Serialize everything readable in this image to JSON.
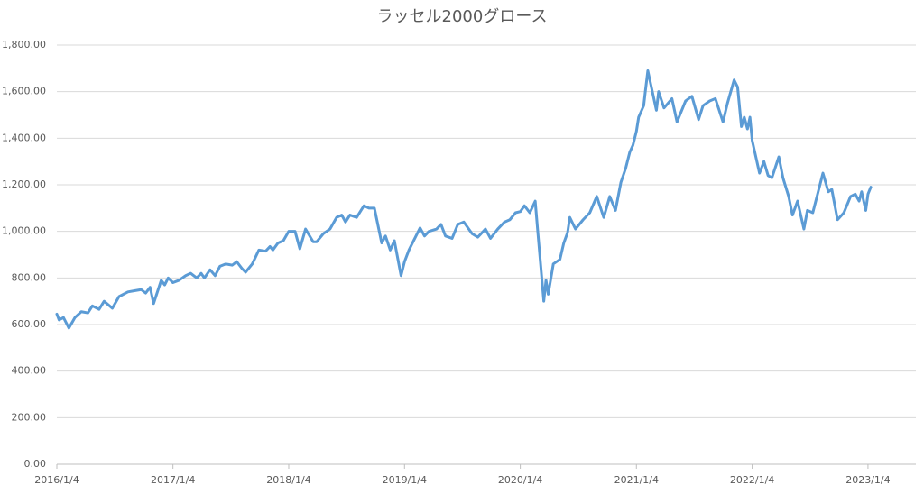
{
  "chart_data": {
    "type": "line",
    "title": "ラッセル2000グロース",
    "x": [
      "2016/1/4",
      "2016/1/11",
      "2016/1/25",
      "2016/2/11",
      "2016/3/1",
      "2016/3/21",
      "2016/4/11",
      "2016/4/25",
      "2016/5/16",
      "2016/6/1",
      "2016/6/27",
      "2016/7/18",
      "2016/8/15",
      "2016/9/5",
      "2016/9/26",
      "2016/10/10",
      "2016/10/24",
      "2016/11/4",
      "2016/11/28",
      "2016/12/9",
      "2016/12/20",
      "2017/1/4",
      "2017/1/23",
      "2017/2/13",
      "2017/3/1",
      "2017/3/20",
      "2017/4/3",
      "2017/4/13",
      "2017/5/1",
      "2017/5/17",
      "2017/6/1",
      "2017/6/19",
      "2017/7/10",
      "2017/7/24",
      "2017/8/10",
      "2017/8/21",
      "2017/9/11",
      "2017/10/2",
      "2017/10/23",
      "2017/11/6",
      "2017/11/15",
      "2017/12/1",
      "2017/12/18",
      "2018/1/4",
      "2018/1/24",
      "2018/2/8",
      "2018/2/26",
      "2018/3/22",
      "2018/4/2",
      "2018/4/23",
      "2018/5/14",
      "2018/6/4",
      "2018/6/20",
      "2018/7/2",
      "2018/7/16",
      "2018/8/6",
      "2018/8/29",
      "2018/9/14",
      "2018/10/1",
      "2018/10/24",
      "2018/11/5",
      "2018/11/20",
      "2018/12/3",
      "2018/12/24",
      "2019/1/4",
      "2019/1/18",
      "2019/2/22",
      "2019/3/8",
      "2019/3/22",
      "2019/4/15",
      "2019/4/29",
      "2019/5/13",
      "2019/6/3",
      "2019/6/21",
      "2019/7/10",
      "2019/8/5",
      "2019/8/23",
      "2019/9/16",
      "2019/10/2",
      "2019/10/25",
      "2019/11/15",
      "2019/12/2",
      "2019/12/20",
      "2020/1/4",
      "2020/1/17",
      "2020/2/3",
      "2020/2/20",
      "2020/2/28",
      "2020/3/18",
      "2020/3/25",
      "2020/4/1",
      "2020/4/17",
      "2020/5/8",
      "2020/5/20",
      "2020/6/1",
      "2020/6/8",
      "2020/6/26",
      "2020/7/20",
      "2020/8/10",
      "2020/9/1",
      "2020/9/23",
      "2020/10/12",
      "2020/10/30",
      "2020/11/16",
      "2020/12/1",
      "2020/12/14",
      "2020/12/24",
      "2021/1/4",
      "2021/1/11",
      "2021/1/27",
      "2021/2/1",
      "2021/2/9",
      "2021/3/8",
      "2021/3/15",
      "2021/4/1",
      "2021/4/26",
      "2021/5/12",
      "2021/6/8",
      "2021/6/28",
      "2021/7/19",
      "2021/8/2",
      "2021/8/23",
      "2021/9/10",
      "2021/10/4",
      "2021/10/18",
      "2021/11/8",
      "2021/11/19",
      "2021/12/1",
      "2021/12/10",
      "2021/12/20",
      "2021/12/28",
      "2022/1/4",
      "2022/1/27",
      "2022/2/10",
      "2022/2/23",
      "2022/3/7",
      "2022/3/29",
      "2022/4/11",
      "2022/4/29",
      "2022/5/11",
      "2022/5/27",
      "2022/6/16",
      "2022/6/27",
      "2022/7/14",
      "2022/8/15",
      "2022/9/1",
      "2022/9/12",
      "2022/9/30",
      "2022/10/20",
      "2022/11/10",
      "2022/11/25",
      "2022/12/7",
      "2022/12/15",
      "2022/12/28",
      "2023/1/4",
      "2023/1/13"
    ],
    "series": [
      {
        "color": "#5b9bd5",
        "values": [
          645,
          620,
          630,
          585,
          630,
          655,
          650,
          680,
          665,
          700,
          670,
          720,
          740,
          745,
          750,
          735,
          760,
          690,
          790,
          770,
          800,
          780,
          790,
          810,
          820,
          800,
          820,
          800,
          835,
          810,
          850,
          860,
          855,
          870,
          840,
          825,
          860,
          920,
          915,
          935,
          920,
          950,
          960,
          1000,
          1000,
          925,
          1010,
          955,
          955,
          990,
          1010,
          1060,
          1070,
          1040,
          1070,
          1060,
          1110,
          1100,
          1100,
          950,
          980,
          920,
          960,
          810,
          870,
          920,
          1015,
          980,
          1000,
          1010,
          1030,
          980,
          970,
          1030,
          1040,
          990,
          975,
          1010,
          970,
          1010,
          1040,
          1050,
          1080,
          1085,
          1110,
          1080,
          1130,
          1000,
          700,
          790,
          730,
          860,
          880,
          950,
          995,
          1060,
          1010,
          1050,
          1080,
          1150,
          1060,
          1150,
          1090,
          1210,
          1270,
          1340,
          1370,
          1430,
          1490,
          1540,
          1600,
          1690,
          1520,
          1600,
          1530,
          1570,
          1470,
          1560,
          1580,
          1480,
          1540,
          1560,
          1570,
          1470,
          1550,
          1650,
          1620,
          1450,
          1490,
          1440,
          1490,
          1390,
          1250,
          1300,
          1240,
          1230,
          1320,
          1230,
          1150,
          1070,
          1130,
          1010,
          1090,
          1080,
          1250,
          1170,
          1180,
          1050,
          1080,
          1150,
          1160,
          1130,
          1170,
          1090,
          1160,
          1190
        ]
      }
    ],
    "xlim": [
      "2016/1/4",
      "2023/6/4"
    ],
    "xticks": [
      "2016/1/4",
      "2017/1/4",
      "2018/1/4",
      "2019/1/4",
      "2020/1/4",
      "2021/1/4",
      "2022/1/4",
      "2023/1/4"
    ],
    "ylim": [
      0,
      1800
    ],
    "yticks": [
      {
        "value": 0,
        "label": "0.00"
      },
      {
        "value": 200,
        "label": "200.00"
      },
      {
        "value": 400,
        "label": "400.00"
      },
      {
        "value": 600,
        "label": "600.00"
      },
      {
        "value": 800,
        "label": "800.00"
      },
      {
        "value": 1000,
        "label": "1,000.00"
      },
      {
        "value": 1200,
        "label": "1,200.00"
      },
      {
        "value": 1400,
        "label": "1,400.00"
      },
      {
        "value": 1600,
        "label": "1,600.00"
      },
      {
        "value": 1800,
        "label": "1,800.00"
      }
    ],
    "grid": true
  }
}
